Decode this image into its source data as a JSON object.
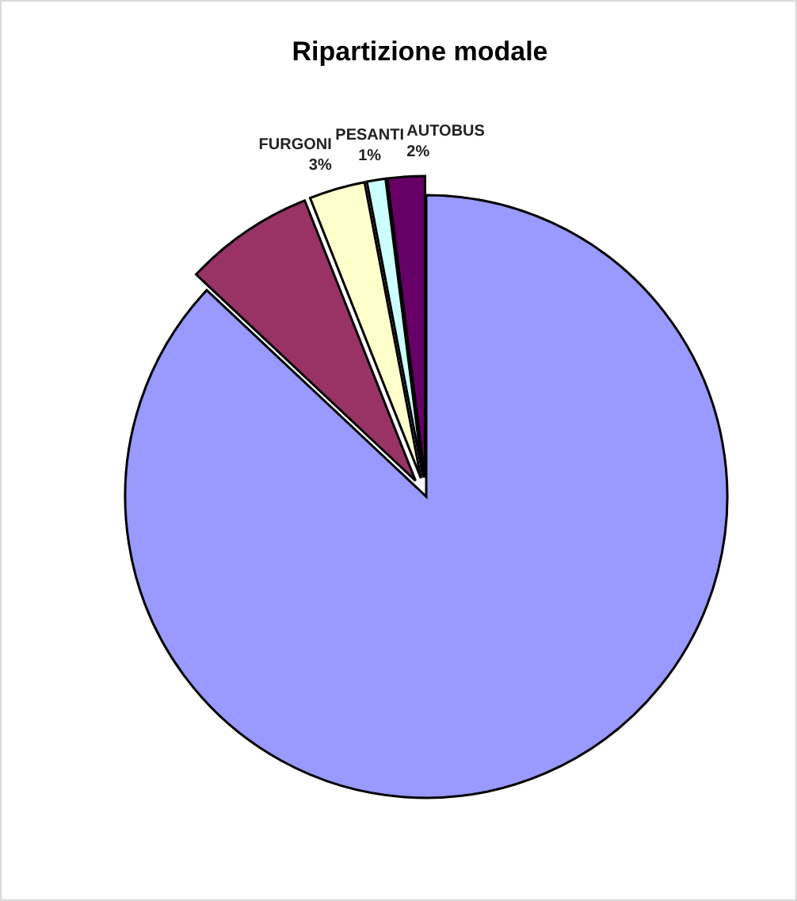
{
  "chart_data": {
    "type": "pie",
    "title": "Ripartizione modale",
    "categories": [
      null,
      null,
      "FURGONI",
      "PESANTI",
      "AUTOBUS"
    ],
    "values": [
      87,
      7,
      3,
      1,
      2
    ],
    "colors": [
      "#9999ff",
      "#993366",
      "#ffffcc",
      "#ccffff",
      "#660066"
    ],
    "value_labels": [
      null,
      null,
      "3%",
      "1%",
      "2%"
    ]
  }
}
